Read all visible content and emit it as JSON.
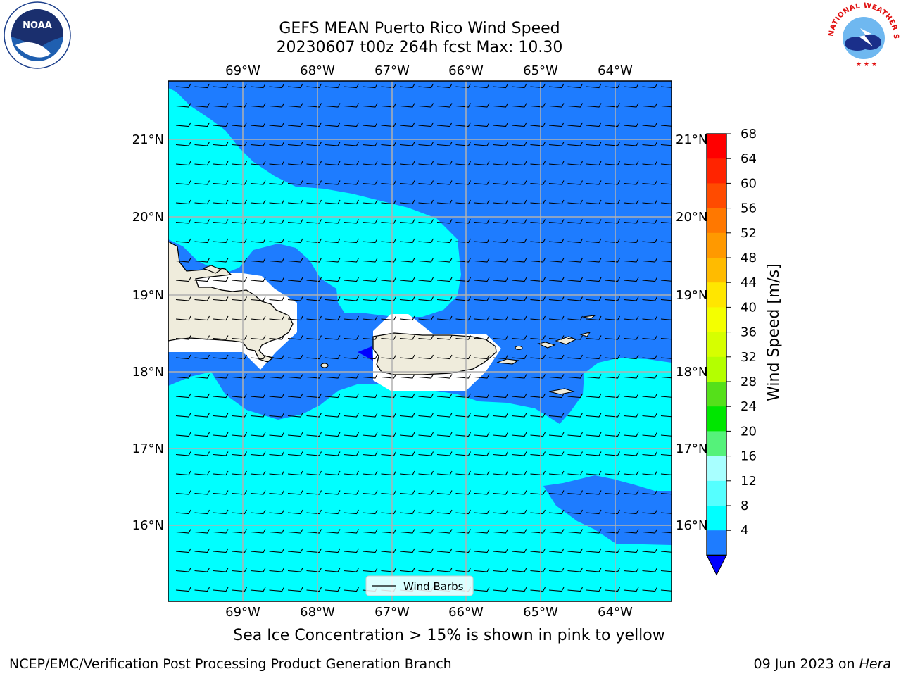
{
  "title": {
    "line1": "GEFS MEAN Puerto Rico Wind Speed",
    "line2": "20230607 t00z 264h fcst   Max: 10.30"
  },
  "map": {
    "lon_labels": [
      "69°W",
      "68°W",
      "67°W",
      "66°W",
      "65°W",
      "64°W"
    ],
    "lat_labels": [
      "21°N",
      "20°N",
      "19°N",
      "18°N",
      "17°N",
      "16°N"
    ],
    "legend_label": "Wind Barbs",
    "colors": {
      "ocean_4_8": "#1e7cff",
      "ocean_8_12": "#00ffff",
      "land": "#efecdc",
      "masked": "#ffffff",
      "below_4": "#0000ff"
    }
  },
  "colorbar": {
    "label": "Wind Speed [m/s]",
    "ticks": [
      "68",
      "64",
      "60",
      "56",
      "52",
      "48",
      "44",
      "40",
      "36",
      "32",
      "28",
      "24",
      "20",
      "16",
      "12",
      "8",
      "4"
    ],
    "colors": [
      "#ff0000",
      "#ff2400",
      "#ff4b00",
      "#ff7800",
      "#ff9900",
      "#ffbb00",
      "#ffe600",
      "#f4ff00",
      "#d6ff00",
      "#b4ff00",
      "#55e01a",
      "#00e600",
      "#55f27a",
      "#a8ffff",
      "#55ffff",
      "#00ffff",
      "#1e7cff"
    ],
    "under_color": "#0000ff"
  },
  "note": "Sea Ice Concentration > 15% is shown in pink to yellow",
  "footer": {
    "left": "NCEP/EMC/Verification Post Processing Product Generation Branch",
    "right_prefix": "09 Jun 2023 on",
    "right_host": "Hera"
  },
  "logos": {
    "noaa_text": "NOAA",
    "nws_text": "NATIONAL WEATHER SERVICE"
  }
}
